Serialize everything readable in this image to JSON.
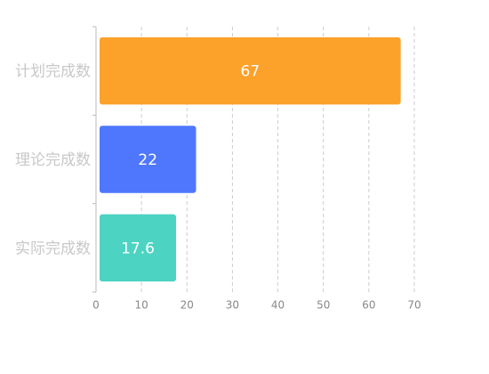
{
  "chart_data": {
    "type": "bar",
    "orientation": "horizontal",
    "categories": [
      "计划完成数",
      "理论完成数",
      "实际完成数"
    ],
    "values": [
      67,
      22,
      17.6
    ],
    "colors": [
      "#fca12a",
      "#4f77fe",
      "#4cd3c2"
    ],
    "xlim": [
      0,
      70
    ],
    "xticks": [
      0,
      10,
      20,
      30,
      40,
      50,
      60,
      70
    ],
    "grid": true
  }
}
